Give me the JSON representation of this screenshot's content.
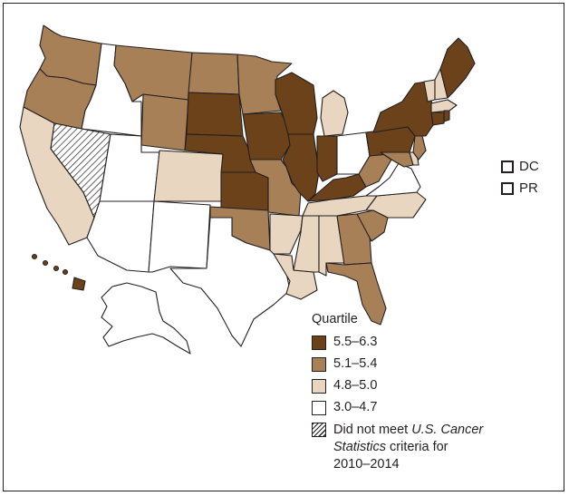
{
  "colors": {
    "q4": "#6b4219",
    "q3": "#a88058",
    "q2": "#e9d6c1",
    "q1": "#ffffff",
    "border": "#231f20"
  },
  "territories": [
    {
      "label": "DC",
      "quartile": "q1"
    },
    {
      "label": "PR",
      "quartile": "q1"
    }
  ],
  "legend": {
    "title": "Quartile",
    "items": [
      {
        "label": "5.5–6.3",
        "quartile": "q4"
      },
      {
        "label": "5.1–5.4",
        "quartile": "q3"
      },
      {
        "label": "4.8–5.0",
        "quartile": "q2"
      },
      {
        "label": "3.0–4.7",
        "quartile": "q1"
      }
    ],
    "not_met": {
      "line1_prefix": "Did not meet ",
      "line1_italic": "U.S. Cancer",
      "line2_italic": "Statistics",
      "line2_suffix": " criteria for",
      "line3": "2010–2014"
    }
  },
  "states": {
    "WA": "q3",
    "OR": "q3",
    "CA": "q2",
    "ID": "q1",
    "NV": "hatch",
    "UT": "q1",
    "AZ": "q1",
    "MT": "q3",
    "WY": "q3",
    "CO": "q2",
    "NM": "q1",
    "ND": "q3",
    "SD": "q4",
    "NE": "q4",
    "KS": "q4",
    "OK": "q3",
    "TX": "q1",
    "MN": "q3",
    "IA": "q4",
    "MO": "q3",
    "AR": "q2",
    "LA": "q2",
    "WI": "q4",
    "IL": "q4",
    "MI": "q2",
    "IN": "q4",
    "OH": "q1",
    "KY": "q4",
    "TN": "q2",
    "MS": "q2",
    "AL": "q2",
    "GA": "q3",
    "FL": "q3",
    "SC": "q3",
    "NC": "q2",
    "VA": "q1",
    "WV": "q3",
    "PA": "q4",
    "NY": "q4",
    "VT": "q2",
    "NH": "q2",
    "ME": "q4",
    "MA": "q2",
    "RI": "q4",
    "CT": "q4",
    "NJ": "q3",
    "DE": "q2",
    "MD": "q3",
    "AK": "q1",
    "HI": "q4"
  }
}
